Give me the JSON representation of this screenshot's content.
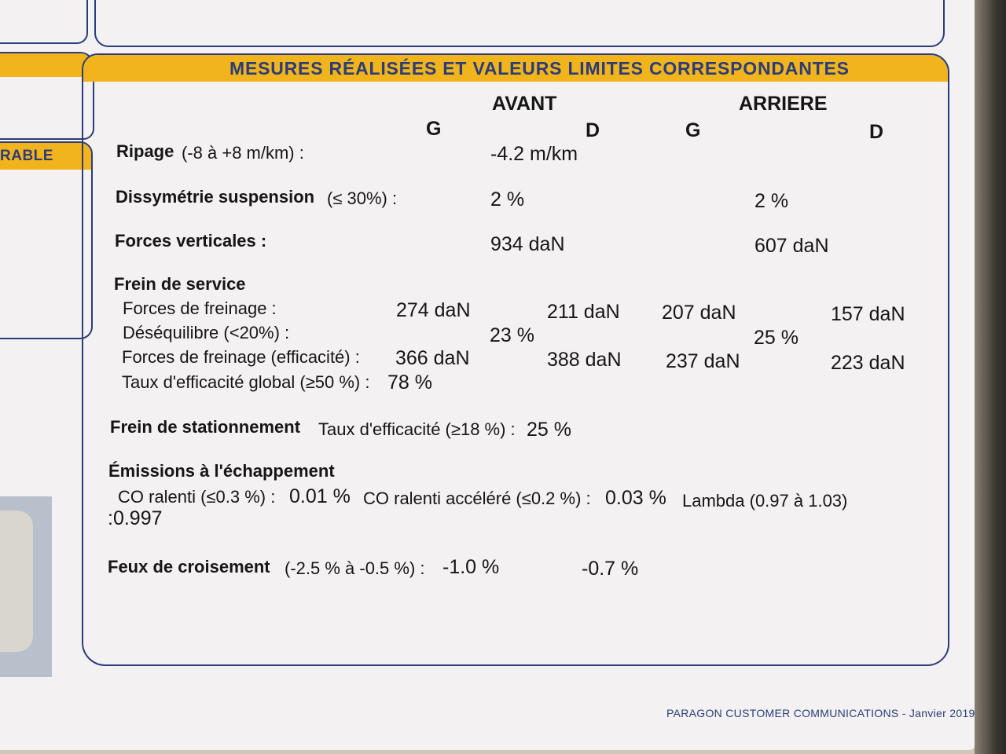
{
  "section_title": "MESURES RÉALISÉES ET VALEURS LIMITES CORRESPONDANTES",
  "left_band_fragment": "RABLE",
  "columns": {
    "avant": "AVANT",
    "arriere": "ARRIERE",
    "avant_g": "G",
    "avant_d": "D",
    "arriere_g": "G",
    "arriere_d": "D"
  },
  "ripage": {
    "label": "Ripage",
    "limit": "(-8 à +8 m/km) :",
    "value": "-4.2 m/km"
  },
  "dissymetrie": {
    "label": "Dissymétrie suspension",
    "limit": "(≤ 30%) :",
    "avant": "2 %",
    "arriere": "2 %"
  },
  "forces_verticales": {
    "label": "Forces verticales :",
    "avant": "934 daN",
    "arriere": "607 daN"
  },
  "frein_service": {
    "heading": "Frein de service",
    "forces_label": "Forces de freinage :",
    "forces": [
      "274 daN",
      "211 daN",
      "207 daN",
      "157 daN"
    ],
    "desequilibre_label": "Déséquilibre (<20%) :",
    "desequilibre_avant": "23 %",
    "desequilibre_arriere": "25 %",
    "efficacite_label": "Forces de freinage (efficacité) :",
    "efficacite": [
      "366 daN",
      "388 daN",
      "237 daN",
      "223 daN"
    ],
    "taux_label": "Taux d'efficacité global (≥50 %) :",
    "taux_value": "78 %"
  },
  "frein_stationnement": {
    "label": "Frein de stationnement",
    "taux_label": "Taux d'efficacité (≥18 %) :",
    "value": "25 %"
  },
  "emissions": {
    "heading": "Émissions à l'échappement",
    "co_label": "CO ralenti (≤0.3 %) :",
    "co_value": "0.01 %",
    "coa_label": "CO ralenti accéléré (≤0.2 %) :",
    "coa_value": "0.03 %",
    "lambda_label": "Lambda (0.97 à 1.03)",
    "lambda_value": ":0.997"
  },
  "feux": {
    "label": "Feux de croisement",
    "limit": "(-2.5 % à  -0.5 %) :",
    "gauche": "-1.0 %",
    "droit": "-0.7 %"
  },
  "footer": "PARAGON CUSTOMER COMMUNICATIONS - Janvier 2019"
}
